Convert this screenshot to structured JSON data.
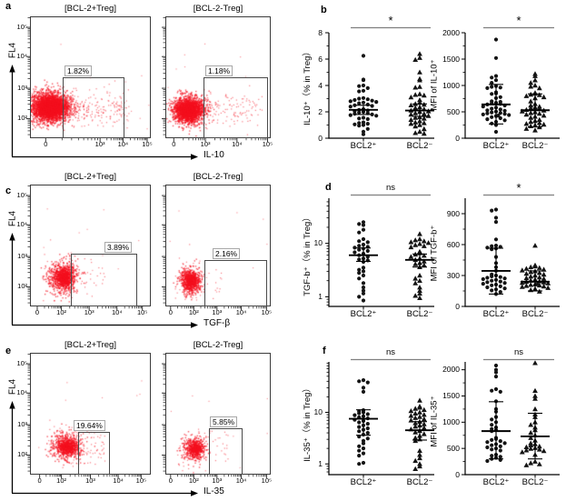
{
  "style_colors": {
    "cloud_red": "#f40f1e",
    "marker_black": "#141414",
    "bracket_gray": "#7f7f7f",
    "axis_black": "#000000"
  },
  "chart_data": [
    {
      "panel": "a",
      "type": "scatter",
      "kind": "flow-cytometry",
      "ylabel": "FL4",
      "xlabel": "IL-10",
      "y_ticks": [
        "10⁵",
        "10⁴",
        "10³",
        "10²"
      ],
      "plots": [
        {
          "title": "[BCL-2+Treg]",
          "gate_percent": "1.82%",
          "x_ticks": [
            "0",
            "10³",
            "10⁴",
            "10⁵"
          ]
        },
        {
          "title": "[BCL-2-Treg]",
          "gate_percent": "1.18%",
          "x_ticks": [
            "0",
            "10³",
            "10⁴",
            "10⁵"
          ]
        }
      ]
    },
    {
      "panel": "b",
      "type": "scatter",
      "categories": [
        "BCL2⁺",
        "BCL2⁻"
      ],
      "plots": [
        {
          "ylabel": "IL-10⁺（% in Treg）",
          "scale": "linear",
          "ylim": [
            0,
            8
          ],
          "y_ticks": [
            0,
            2,
            4,
            6,
            8
          ],
          "significance": "*",
          "series": [
            {
              "name": "BCL2⁺",
              "marker": "circle",
              "mean": 2.15,
              "error_low": 1.8,
              "error_high": 2.5,
              "values": [
                6.25,
                4.45,
                4.4,
                4.0,
                3.95,
                3.8,
                3.6,
                3.55,
                3.05,
                3.0,
                2.95,
                2.9,
                2.85,
                2.8,
                2.75,
                2.7,
                2.65,
                2.55,
                2.5,
                2.45,
                2.4,
                2.2,
                2.15,
                2.1,
                2.05,
                2.0,
                1.95,
                1.9,
                1.85,
                1.8,
                1.75,
                1.7,
                1.55,
                1.5,
                1.45,
                1.2,
                1.15,
                1.1,
                1.05,
                1.0,
                0.95,
                0.7,
                0.5,
                0.3
              ]
            },
            {
              "name": "BCL2⁻",
              "marker": "triangle",
              "mean": 2.1,
              "error_low": 1.65,
              "error_high": 2.6,
              "values": [
                6.4,
                6.1,
                5.95,
                5.0,
                4.5,
                4.4,
                3.9,
                3.85,
                3.35,
                3.3,
                3.25,
                3.1,
                2.9,
                2.7,
                2.6,
                2.55,
                2.5,
                2.35,
                2.3,
                2.2,
                2.1,
                2.05,
                2.0,
                1.9,
                1.85,
                1.8,
                1.7,
                1.6,
                1.55,
                1.5,
                1.4,
                1.3,
                1.2,
                1.15,
                1.1,
                1.0,
                0.9,
                0.7,
                0.5,
                0.4,
                0.35
              ]
            }
          ]
        },
        {
          "ylabel": "MFI of IL-10⁺",
          "scale": "linear",
          "ylim": [
            0,
            2000
          ],
          "y_ticks": [
            0,
            500,
            1000,
            1500,
            2000
          ],
          "significance": "*",
          "series": [
            {
              "name": "BCL2⁺",
              "marker": "circle",
              "mean": 640,
              "error_low": 270,
              "error_high": 1020,
              "values": [
                1870,
                1520,
                1180,
                1150,
                1100,
                1050,
                990,
                975,
                960,
                950,
                870,
                850,
                840,
                780,
                760,
                700,
                690,
                670,
                660,
                650,
                640,
                620,
                600,
                580,
                560,
                545,
                530,
                520,
                505,
                490,
                480,
                470,
                460,
                450,
                440,
                430,
                420,
                400,
                380,
                360,
                340,
                310,
                280,
                250,
                120
              ]
            },
            {
              "name": "BCL2⁻",
              "marker": "triangle",
              "mean": 530,
              "error_low": 215,
              "error_high": 840,
              "values": [
                1220,
                1180,
                1100,
                1050,
                1000,
                980,
                950,
                860,
                845,
                830,
                820,
                800,
                780,
                760,
                700,
                650,
                620,
                600,
                585,
                570,
                555,
                540,
                525,
                510,
                495,
                480,
                465,
                450,
                430,
                410,
                390,
                350,
                330,
                310,
                290,
                275,
                260,
                245,
                230,
                210,
                180,
                150
              ]
            }
          ]
        }
      ]
    },
    {
      "panel": "c",
      "type": "scatter",
      "kind": "flow-cytometry",
      "ylabel": "FL4",
      "xlabel": "TGF-β",
      "y_ticks": [
        "10⁵",
        "10⁴",
        "10³",
        "10²"
      ],
      "plots": [
        {
          "title": "[BCL-2+Treg]",
          "gate_percent": "3.89%",
          "x_ticks": [
            "0",
            "10²",
            "10³",
            "10⁴",
            "10⁵"
          ]
        },
        {
          "title": "[BCL-2-Treg]",
          "gate_percent": "2.16%",
          "x_ticks": [
            "0",
            "10²",
            "10³",
            "10⁴",
            "10⁵"
          ]
        }
      ]
    },
    {
      "panel": "d",
      "type": "scatter",
      "categories": [
        "BCL2⁺",
        "BCL2⁻"
      ],
      "plots": [
        {
          "ylabel": "TGF-b⁺（% in Treg）",
          "scale": "log",
          "ylim": [
            0.66,
            70
          ],
          "y_ticks": [
            1,
            10
          ],
          "significance": "ns",
          "series": [
            {
              "name": "BCL2⁺",
              "marker": "circle",
              "mean": 6.0,
              "error_low": 4.6,
              "error_high": 8.2,
              "values": [
                25,
                23,
                22,
                18,
                16,
                12,
                11,
                10.5,
                9.5,
                9,
                8.6,
                8.3,
                8,
                7.6,
                7.2,
                6.8,
                6.4,
                6,
                5.6,
                5.2,
                5,
                4.8,
                4.5,
                3.5,
                3.2,
                3,
                2.8,
                2.5,
                2.2,
                1.8,
                1.5,
                1.3,
                1.15,
                1.0,
                0.85
              ]
            },
            {
              "name": "BCL2⁻",
              "marker": "triangle",
              "mean": 4.9,
              "error_low": 3.6,
              "error_high": 6.3,
              "values": [
                15,
                12,
                11.5,
                11,
                10.6,
                10.2,
                9.8,
                9.3,
                8.9,
                8.5,
                7,
                6.6,
                6.2,
                5.9,
                5.6,
                5.2,
                4.9,
                4.6,
                4.3,
                4.1,
                3.9,
                3.6,
                2.5,
                2.2,
                2.0,
                1.8,
                1.5,
                1.3,
                1.15,
                1.05,
                0.95
              ]
            }
          ]
        },
        {
          "ylabel": "MFI of TGF-b⁺",
          "scale": "linear",
          "ylim": [
            0,
            1050
          ],
          "y_ticks": [
            0,
            300,
            600,
            900
          ],
          "significance": "*",
          "series": [
            {
              "name": "BCL2⁺",
              "marker": "circle",
              "mean": 345,
              "error_low": 120,
              "error_high": 565,
              "values": [
                940,
                930,
                860,
                820,
                650,
                590,
                585,
                578,
                570,
                562,
                555,
                480,
                420,
                380,
                345,
                310,
                300,
                292,
                285,
                278,
                272,
                265,
                258,
                250,
                242,
                235,
                228,
                220,
                212,
                205,
                195,
                185,
                175,
                165,
                155,
                140,
                120
              ]
            },
            {
              "name": "BCL2⁻",
              "marker": "triangle",
              "mean": 240,
              "error_low": 150,
              "error_high": 345,
              "values": [
                590,
                400,
                390,
                382,
                374,
                366,
                358,
                350,
                342,
                334,
                326,
                318,
                310,
                300,
                290,
                282,
                275,
                268,
                260,
                252,
                245,
                240,
                235,
                230,
                225,
                220,
                215,
                210,
                205,
                200,
                195,
                190,
                180,
                170,
                160,
                145
              ]
            }
          ]
        }
      ]
    },
    {
      "panel": "e",
      "type": "scatter",
      "kind": "flow-cytometry",
      "ylabel": "FL4",
      "xlabel": "IL-35",
      "y_ticks": [
        "10⁵",
        "10⁴",
        "10³",
        "10²"
      ],
      "plots": [
        {
          "title": "[BCL-2+Treg]",
          "gate_percent": "19.64%",
          "x_ticks": [
            "0",
            "10²",
            "10³",
            "10⁴",
            "10⁵"
          ]
        },
        {
          "title": "[BCL-2-Treg]",
          "gate_percent": "5.85%",
          "x_ticks": [
            "0",
            "10²",
            "10³",
            "10⁴",
            "10⁵"
          ]
        }
      ]
    },
    {
      "panel": "f",
      "type": "scatter",
      "categories": [
        "BCL2⁺",
        "BCL2⁻"
      ],
      "plots": [
        {
          "ylabel": "IL-35⁺（% in Treg）",
          "scale": "log",
          "ylim": [
            0.62,
            95
          ],
          "y_ticks": [
            1,
            10
          ],
          "significance": "ns",
          "series": [
            {
              "name": "BCL2⁺",
              "marker": "circle",
              "mean": 7.5,
              "error_low": 3.6,
              "error_high": 11.2,
              "values": [
                42,
                40,
                38,
                30,
                25,
                11,
                10.5,
                10,
                9.6,
                9.2,
                8.8,
                8.4,
                8,
                7.6,
                7.2,
                6.8,
                6.4,
                6,
                5.6,
                5.2,
                4.9,
                4.6,
                4.3,
                4,
                3.7,
                3.4,
                3.1,
                2.8,
                2.5,
                2.2,
                2.0,
                1.8,
                1.6,
                1.45,
                1.05,
                1.0
              ]
            },
            {
              "name": "BCL2⁻",
              "marker": "triangle",
              "mean": 4.5,
              "error_low": 2.9,
              "error_high": 6.6,
              "values": [
                17,
                13,
                12.4,
                11.8,
                11.2,
                10.6,
                10,
                9.5,
                9,
                8.6,
                8.2,
                7.8,
                7.4,
                7,
                6.6,
                6.2,
                5.9,
                5.6,
                5.3,
                5,
                4.7,
                4.4,
                4.1,
                3.8,
                3.5,
                3.2,
                3.0,
                2.8,
                1.8,
                1.5,
                1.3,
                1.15,
                1.0,
                0.9,
                0.8
              ]
            }
          ]
        },
        {
          "ylabel": "MFI of IL-35⁺",
          "scale": "linear",
          "ylim": [
            0,
            2150
          ],
          "y_ticks": [
            0,
            500,
            1000,
            1500,
            2000
          ],
          "significance": "ns",
          "series": [
            {
              "name": "BCL2⁺",
              "marker": "circle",
              "mean": 830,
              "error_low": 300,
              "error_high": 1390,
              "values": [
                2080,
                2000,
                1950,
                1870,
                1630,
                1600,
                1580,
                1400,
                1250,
                1200,
                1100,
                1050,
                1000,
                950,
                900,
                870,
                850,
                830,
                700,
                680,
                660,
                640,
                620,
                600,
                580,
                560,
                540,
                520,
                500,
                480,
                460,
                380,
                360,
                340,
                320,
                300,
                280,
                260
              ]
            },
            {
              "name": "BCL2⁻",
              "marker": "triangle",
              "mean": 730,
              "error_low": 300,
              "error_high": 1170,
              "values": [
                2130,
                1600,
                1500,
                1450,
                1250,
                1150,
                1100,
                1000,
                950,
                900,
                850,
                800,
                750,
                700,
                650,
                600,
                580,
                560,
                540,
                525,
                510,
                495,
                480,
                465,
                450,
                430,
                380,
                250,
                220,
                200,
                180
              ]
            }
          ]
        }
      ]
    }
  ]
}
